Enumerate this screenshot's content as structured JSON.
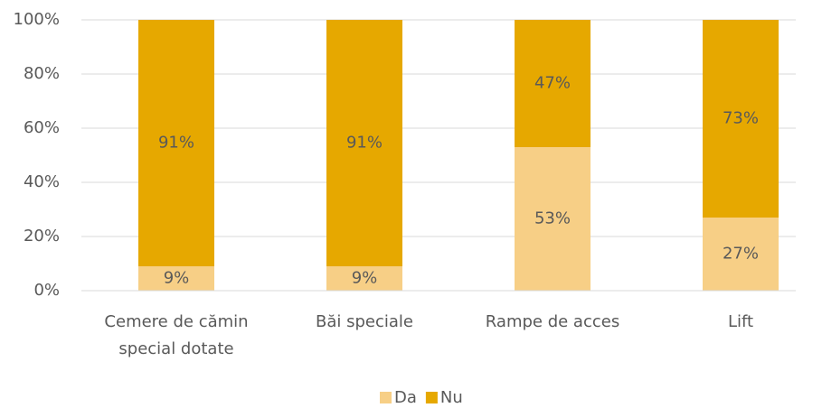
{
  "chart_data": {
    "type": "stacked_bar",
    "categories": [
      "Cemere de cămin special dotate",
      "Băi speciale",
      "Rampe de acces",
      "Lift"
    ],
    "series": [
      {
        "name": "Da",
        "color": "#f7cf86",
        "values": [
          9,
          9,
          53,
          27
        ],
        "value_labels": [
          "9%",
          "9%",
          "53%",
          "27%"
        ]
      },
      {
        "name": "Nu",
        "color": "#e6a800",
        "values": [
          91,
          91,
          47,
          73
        ],
        "value_labels": [
          "91%",
          "91%",
          "47%",
          "73%"
        ]
      }
    ],
    "ylim": [
      0,
      100
    ],
    "yticks": [
      {
        "value": 0,
        "label": "0%"
      },
      {
        "value": 20,
        "label": "20%"
      },
      {
        "value": 40,
        "label": "40%"
      },
      {
        "value": 60,
        "label": "60%"
      },
      {
        "value": 80,
        "label": "80%"
      },
      {
        "value": 100,
        "label": "100%"
      }
    ],
    "grid": true,
    "legend": "bottom"
  }
}
